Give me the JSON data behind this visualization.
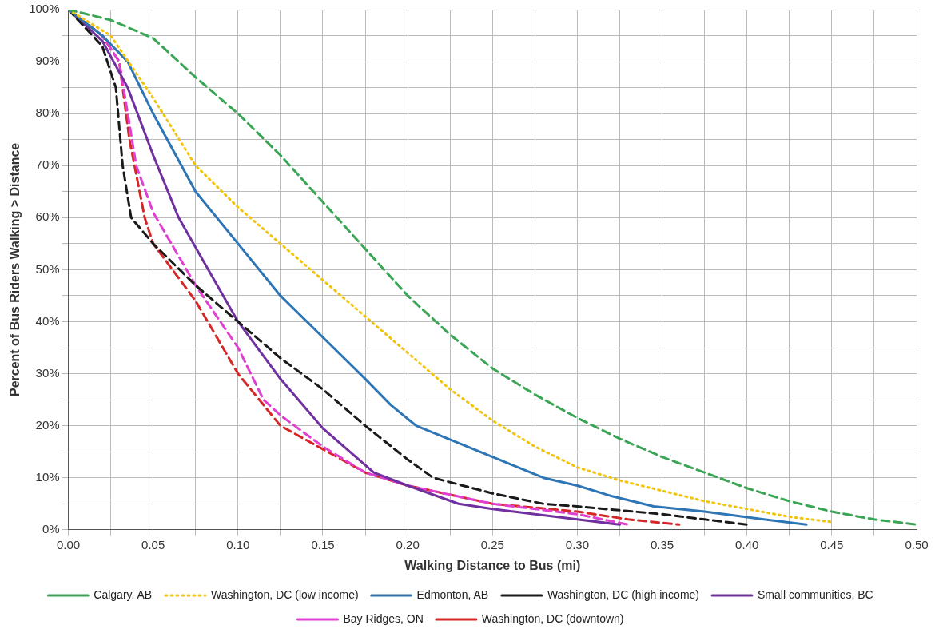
{
  "chart_data": {
    "type": "line",
    "xlabel": "Walking Distance to Bus (mi)",
    "ylabel": "Percent of Bus Riders Walking > Distance",
    "legend": "bottom",
    "grid": true,
    "marker": "none",
    "xlim": [
      0,
      0.5
    ],
    "ylim": [
      0,
      100
    ],
    "xticks": [
      {
        "value": 0,
        "label": "0.00"
      },
      {
        "value": 0.025,
        "label": null
      },
      {
        "value": 0.05,
        "label": "0.05"
      },
      {
        "value": 0.075,
        "label": null
      },
      {
        "value": 0.1,
        "label": "0.10"
      },
      {
        "value": 0.125,
        "label": null
      },
      {
        "value": 0.15,
        "label": "0.15"
      },
      {
        "value": 0.175,
        "label": null
      },
      {
        "value": 0.2,
        "label": "0.20"
      },
      {
        "value": 0.225,
        "label": null
      },
      {
        "value": 0.25,
        "label": "0.25"
      },
      {
        "value": 0.275,
        "label": null
      },
      {
        "value": 0.3,
        "label": "0.30"
      },
      {
        "value": 0.325,
        "label": null
      },
      {
        "value": 0.35,
        "label": "0.35"
      },
      {
        "value": 0.375,
        "label": null
      },
      {
        "value": 0.4,
        "label": "0.40"
      },
      {
        "value": 0.425,
        "label": null
      },
      {
        "value": 0.45,
        "label": "0.45"
      },
      {
        "value": 0.475,
        "label": null
      },
      {
        "value": 0.5,
        "label": "0.50"
      }
    ],
    "yticks": [
      {
        "value": 0,
        "label": "0%"
      },
      {
        "value": 5,
        "label": null
      },
      {
        "value": 10,
        "label": "10%"
      },
      {
        "value": 15,
        "label": null
      },
      {
        "value": 20,
        "label": "20%"
      },
      {
        "value": 25,
        "label": null
      },
      {
        "value": 30,
        "label": "30%"
      },
      {
        "value": 35,
        "label": null
      },
      {
        "value": 40,
        "label": "40%"
      },
      {
        "value": 45,
        "label": null
      },
      {
        "value": 50,
        "label": "50%"
      },
      {
        "value": 55,
        "label": null
      },
      {
        "value": 60,
        "label": "60%"
      },
      {
        "value": 65,
        "label": null
      },
      {
        "value": 70,
        "label": "70%"
      },
      {
        "value": 75,
        "label": null
      },
      {
        "value": 80,
        "label": "80%"
      },
      {
        "value": 85,
        "label": null
      },
      {
        "value": 90,
        "label": "90%"
      },
      {
        "value": 95,
        "label": null
      },
      {
        "value": 100,
        "label": "100%"
      }
    ],
    "series": [
      {
        "name": "Calgary, AB",
        "color": "#3aa655",
        "line_style": "dashed",
        "x": [
          0,
          0.025,
          0.05,
          0.075,
          0.1,
          0.125,
          0.15,
          0.175,
          0.2,
          0.225,
          0.25,
          0.275,
          0.3,
          0.325,
          0.35,
          0.375,
          0.4,
          0.425,
          0.45,
          0.475,
          0.5
        ],
        "values": [
          100,
          98,
          94.5,
          87,
          80,
          72,
          63,
          54,
          45,
          37.5,
          31,
          26,
          21.5,
          17.5,
          14,
          11,
          8,
          5.5,
          3.5,
          2,
          1
        ]
      },
      {
        "name": "Washington, DC (low income)",
        "color": "#f2c40f",
        "line_style": "dotted",
        "x": [
          0,
          0.025,
          0.05,
          0.075,
          0.1,
          0.125,
          0.15,
          0.175,
          0.2,
          0.225,
          0.25,
          0.275,
          0.3,
          0.325,
          0.35,
          0.375,
          0.4,
          0.425,
          0.45
        ],
        "values": [
          100,
          95,
          83,
          70,
          62,
          55,
          48,
          41,
          34,
          27,
          21,
          16,
          12,
          9.5,
          7.5,
          5.5,
          4,
          2.5,
          1.5
        ]
      },
      {
        "name": "Edmonton, AB",
        "color": "#2e75b6",
        "line_style": "solid",
        "x": [
          0,
          0.02,
          0.035,
          0.05,
          0.075,
          0.1,
          0.125,
          0.15,
          0.175,
          0.19,
          0.205,
          0.25,
          0.28,
          0.3,
          0.32,
          0.345,
          0.375,
          0.41,
          0.435
        ],
        "values": [
          100,
          95,
          90,
          80,
          65,
          55,
          45,
          37,
          29,
          24,
          20,
          14,
          10,
          8.5,
          6.5,
          4.5,
          3.5,
          2,
          1
        ]
      },
      {
        "name": "Washington, DC (high income)",
        "color": "#1a1a1a",
        "line_style": "dashed",
        "x": [
          0,
          0.02,
          0.028,
          0.032,
          0.037,
          0.05,
          0.075,
          0.1,
          0.125,
          0.15,
          0.175,
          0.2,
          0.215,
          0.25,
          0.28,
          0.3,
          0.35,
          0.375,
          0.4
        ],
        "values": [
          100,
          93,
          85,
          70,
          60,
          55,
          47,
          40,
          33,
          27,
          20,
          13.5,
          10,
          7,
          5,
          4.5,
          3,
          2,
          1
        ]
      },
      {
        "name": "Small communities, BC",
        "color": "#7030a0",
        "line_style": "solid",
        "x": [
          0,
          0.02,
          0.035,
          0.05,
          0.065,
          0.1,
          0.125,
          0.15,
          0.18,
          0.2,
          0.23,
          0.25,
          0.3,
          0.325
        ],
        "values": [
          100,
          94,
          85,
          72,
          60,
          40,
          29,
          19.5,
          11,
          8.5,
          5,
          4,
          2,
          1
        ]
      },
      {
        "name": "Bay Ridges, ON",
        "color": "#e040d0",
        "line_style": "dashed",
        "x": [
          0,
          0.02,
          0.03,
          0.04,
          0.05,
          0.075,
          0.1,
          0.115,
          0.125,
          0.15,
          0.175,
          0.2,
          0.25,
          0.3,
          0.33
        ],
        "values": [
          100,
          95,
          90,
          70,
          61,
          47,
          35,
          25,
          22,
          16,
          11,
          8.5,
          5,
          3,
          1
        ]
      },
      {
        "name": "Washington, DC (downtown)",
        "color": "#d62728",
        "line_style": "dashed",
        "x": [
          0,
          0.02,
          0.03,
          0.036,
          0.045,
          0.05,
          0.075,
          0.1,
          0.125,
          0.15,
          0.175,
          0.2,
          0.25,
          0.3,
          0.33,
          0.36
        ],
        "values": [
          100,
          95,
          90,
          75,
          60,
          55,
          44,
          30,
          20,
          15.5,
          11,
          8.5,
          5,
          3.5,
          2,
          1
        ]
      }
    ]
  }
}
